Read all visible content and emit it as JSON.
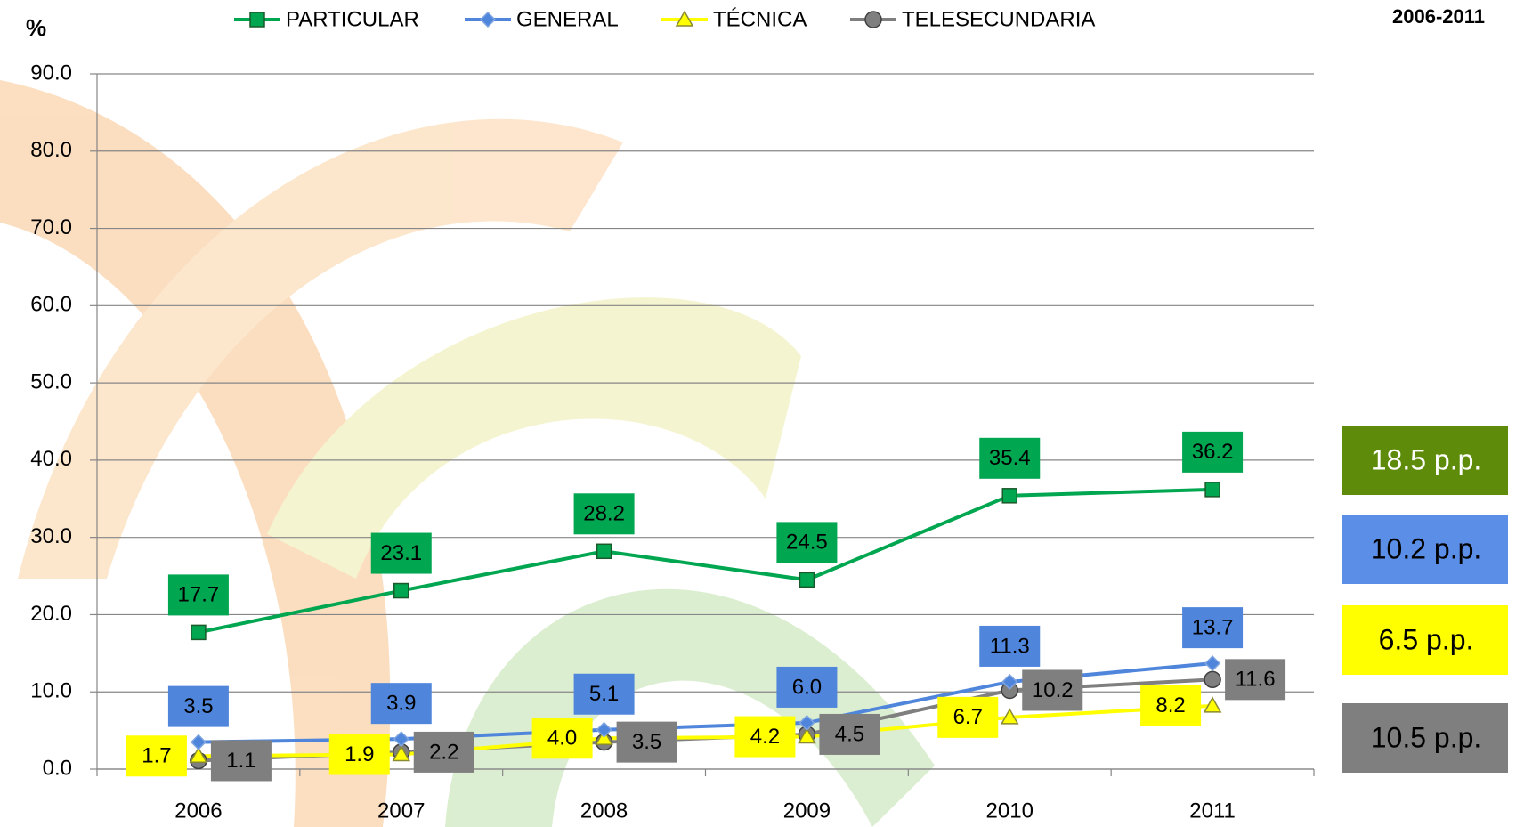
{
  "chart_data": {
    "type": "line",
    "y_label": "%",
    "period": "2006-2011",
    "categories": [
      "2006",
      "2007",
      "2008",
      "2009",
      "2010",
      "2011"
    ],
    "series": [
      {
        "name": "PARTICULAR",
        "color": "#00a650",
        "marker": "square",
        "values": [
          17.7,
          23.1,
          28.2,
          24.5,
          35.4,
          36.2
        ],
        "value_labels": [
          "17.7",
          "23.1",
          "28.2",
          "24.5",
          "35.4",
          "36.2"
        ]
      },
      {
        "name": "GENERAL",
        "color": "#4f86dc",
        "marker": "diamond",
        "values": [
          3.5,
          3.9,
          5.1,
          6.0,
          11.3,
          13.7
        ],
        "value_labels": [
          "3.5",
          "3.9",
          "5.1",
          "6.0",
          "11.3",
          "13.7"
        ]
      },
      {
        "name": "TÉCNICA",
        "color": "#ffff00",
        "marker": "triangle",
        "values": [
          1.7,
          1.9,
          4.0,
          4.2,
          6.7,
          8.2
        ],
        "value_labels": [
          "1.7",
          "1.9",
          "4.0",
          "4.2",
          "6.7",
          "8.2"
        ]
      },
      {
        "name": "TELESECUNDARIA",
        "color": "#7f7f7f",
        "marker": "circle",
        "values": [
          1.1,
          2.2,
          3.5,
          4.5,
          10.2,
          11.6
        ],
        "value_labels": [
          "1.1",
          "2.2",
          "3.5",
          "4.5",
          "10.2",
          "11.6"
        ]
      }
    ],
    "ylim": [
      0,
      90
    ],
    "yticks": [
      {
        "value": 0,
        "label": "0.0"
      },
      {
        "value": 10,
        "label": "10.0"
      },
      {
        "value": 20,
        "label": "20.0"
      },
      {
        "value": 30,
        "label": "30.0"
      },
      {
        "value": 40,
        "label": "40.0"
      },
      {
        "value": 50,
        "label": "50.0"
      },
      {
        "value": 60,
        "label": "60.0"
      },
      {
        "value": 70,
        "label": "70.0"
      },
      {
        "value": 80,
        "label": "80.0"
      },
      {
        "value": 90,
        "label": "90.0"
      }
    ],
    "grid": true,
    "annotations": [
      {
        "text": "18.5 p.p.",
        "color": "#5e8c0a",
        "text_color": "#ffffff"
      },
      {
        "text": "10.2 p.p.",
        "color": "#5b8ee6",
        "text_color": "#000000"
      },
      {
        "text": "6.5 p.p.",
        "color": "#ffff00",
        "text_color": "#000000"
      },
      {
        "text": "10.5 p.p.",
        "color": "#7f7f7f",
        "text_color": "#000000"
      }
    ]
  }
}
